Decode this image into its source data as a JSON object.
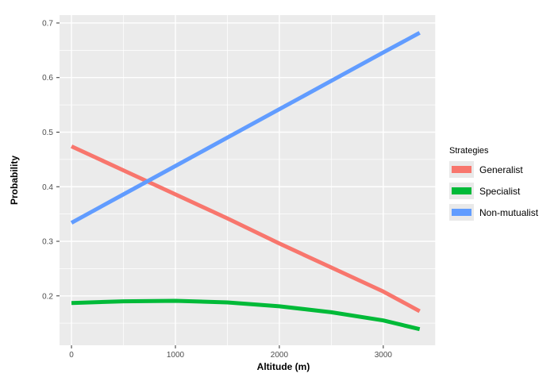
{
  "figure": {
    "x_axis_title": "Altitude (m)",
    "y_axis_title": "Probability"
  },
  "legend": {
    "title": "Strategies",
    "items": [
      {
        "label": "Generalist",
        "color": "#F8766D"
      },
      {
        "label": "Specialist",
        "color": "#00BA38"
      },
      {
        "label": "Non-mutualist",
        "color": "#619CFF"
      }
    ]
  },
  "chart_data": {
    "type": "line",
    "title": "",
    "xlabel": "Altitude (m)",
    "ylabel": "Probability",
    "legend_title": "Strategies",
    "legend_position": "right",
    "grid": true,
    "panel_bg": "#EBEBEB",
    "grid_color": "#FFFFFF",
    "tick_color": "#333333",
    "tick_label_color": "#4D4D4D",
    "xlim": [
      -115,
      3505
    ],
    "ylim": [
      0.1095,
      0.7145
    ],
    "x_ticks": [
      0,
      1000,
      2000,
      3000
    ],
    "x_tick_labels": [
      "0",
      "1000",
      "2000",
      "3000"
    ],
    "y_ticks": [
      0.2,
      0.3,
      0.4,
      0.5,
      0.6,
      0.7
    ],
    "y_tick_labels": [
      "0.2",
      "0.3",
      "0.4",
      "0.5",
      "0.6",
      "0.7"
    ],
    "x_minor_ticks": [
      500,
      1500,
      2500,
      3500
    ],
    "y_minor_ticks": [
      0.15,
      0.25,
      0.35,
      0.45,
      0.55,
      0.65
    ],
    "line_width": 5,
    "series": [
      {
        "name": "Generalist",
        "color": "#F8766D",
        "points": [
          [
            0,
            0.474
          ],
          [
            500,
            0.43
          ],
          [
            1000,
            0.386
          ],
          [
            1500,
            0.342
          ],
          [
            2000,
            0.296
          ],
          [
            2500,
            0.252
          ],
          [
            3000,
            0.208
          ],
          [
            3350,
            0.172
          ]
        ]
      },
      {
        "name": "Specialist",
        "color": "#00BA38",
        "points": [
          [
            0,
            0.187
          ],
          [
            500,
            0.19
          ],
          [
            1000,
            0.191
          ],
          [
            1500,
            0.188
          ],
          [
            2000,
            0.181
          ],
          [
            2500,
            0.17
          ],
          [
            3000,
            0.155
          ],
          [
            3350,
            0.139
          ]
        ]
      },
      {
        "name": "Non-mutualist",
        "color": "#619CFF",
        "points": [
          [
            0,
            0.334
          ],
          [
            500,
            0.386
          ],
          [
            1000,
            0.438
          ],
          [
            1500,
            0.49
          ],
          [
            2000,
            0.542
          ],
          [
            2500,
            0.594
          ],
          [
            3000,
            0.646
          ],
          [
            3350,
            0.682
          ]
        ]
      }
    ]
  }
}
